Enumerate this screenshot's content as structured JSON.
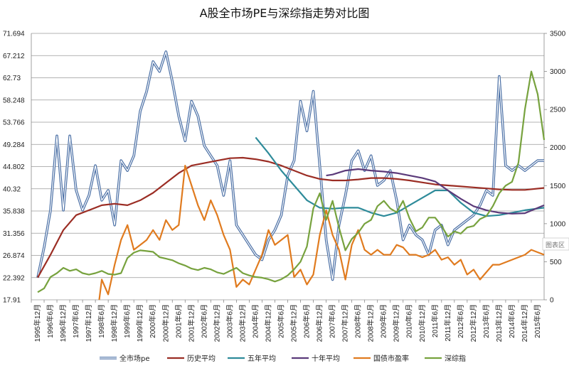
{
  "chart_data": {
    "type": "line",
    "title": "A股全市场PE与深综指走势对比图",
    "grid": "horizontal",
    "legend_position": "bottom",
    "hidden_label": "图表区",
    "y_left": {
      "ticks": [
        "17.91",
        "22.392",
        "26.874",
        "31.356",
        "35.838",
        "40.32",
        "44.802",
        "49.284",
        "53.766",
        "58.248",
        "62.73",
        "67.212",
        "71.694"
      ],
      "range": [
        17.91,
        71.694
      ]
    },
    "y_right": {
      "ticks": [
        "0",
        "500",
        "1000",
        "1500",
        "2000",
        "2500",
        "3000",
        "3500"
      ],
      "range": [
        0,
        3500
      ]
    },
    "x_categories": [
      "1995年12月",
      "1996年6月",
      "1996年12月",
      "1997年6月",
      "1997年12月",
      "1998年6月",
      "1998年12月",
      "1999年6月",
      "1999年12月",
      "2000年6月",
      "2000年12月",
      "2001年6月",
      "2001年12月",
      "2002年6月",
      "2002年12月",
      "2003年6月",
      "2003年12月",
      "2004年6月",
      "2004年12月",
      "2005年6月",
      "2005年12月",
      "2006年6月",
      "2006年12月",
      "2007年6月",
      "2007年12月",
      "2008年6月",
      "2008年12月",
      "2009年6月",
      "2009年12月",
      "2010年6月",
      "2010年12月",
      "2011年6月",
      "2011年12月",
      "2012年6月",
      "2012年12月",
      "2013年6月",
      "2013年12月",
      "2014年6月",
      "2014年12月",
      "2015年6月"
    ],
    "series": [
      {
        "name": "全市场pe",
        "axis": "left",
        "color": "#4a6fa5",
        "double": true,
        "x": [
          0,
          0.5,
          1,
          1.5,
          2,
          2.5,
          3,
          3.5,
          4,
          4.5,
          5,
          5.5,
          6,
          6.5,
          7,
          7.5,
          8,
          8.5,
          9,
          9.5,
          10,
          10.5,
          11,
          11.5,
          12,
          12.5,
          13,
          13.5,
          14,
          14.5,
          15,
          15.5,
          16,
          16.5,
          17,
          17.5,
          18,
          18.5,
          19,
          19.5,
          20,
          20.5,
          21,
          21.5,
          22,
          22.5,
          23,
          23.5,
          24,
          24.5,
          25,
          25.5,
          26,
          26.5,
          27,
          27.5,
          28,
          28.5,
          29,
          29.5,
          30,
          30.5,
          31,
          31.5,
          32,
          32.5,
          33,
          33.5,
          34,
          34.5,
          35,
          35.5,
          36,
          36.5,
          37,
          37.5,
          38,
          38.5,
          39,
          39.5
        ],
        "y": [
          22.4,
          28.5,
          36,
          51,
          36,
          51,
          40,
          36,
          39,
          45,
          38,
          40,
          33,
          46,
          44,
          47,
          56,
          60,
          66,
          64,
          68,
          62,
          55,
          50,
          58,
          55,
          49,
          47,
          45,
          39,
          46,
          33,
          31,
          29,
          27,
          26,
          30,
          32,
          35,
          43,
          46,
          58,
          52,
          60,
          45,
          30,
          22,
          33,
          39,
          46,
          48,
          44,
          47,
          41,
          42,
          44,
          38,
          30,
          33,
          31,
          30,
          27,
          32,
          33,
          29,
          32,
          33,
          34,
          35,
          37,
          40,
          39,
          63,
          45,
          44,
          45,
          44,
          45,
          46,
          46
        ]
      },
      {
        "name": "历史平均",
        "axis": "left",
        "color": "#9b2d24",
        "x": [
          0,
          1,
          2,
          3,
          4,
          5,
          6,
          7,
          8,
          9,
          10,
          11,
          12,
          13,
          14,
          15,
          16,
          17,
          18,
          19,
          20,
          21,
          22,
          23,
          24,
          25,
          26,
          27,
          28,
          29,
          30,
          31,
          32,
          33,
          34,
          35,
          36,
          37,
          38,
          39.5
        ],
        "y": [
          22.4,
          27,
          32,
          35,
          36,
          37,
          37.3,
          37,
          38,
          39.5,
          41.5,
          43.5,
          45,
          45.5,
          46,
          46.5,
          46.6,
          46.3,
          45.8,
          45,
          44,
          43,
          42.3,
          42,
          42,
          42.2,
          42.5,
          42.5,
          42.3,
          42,
          41.6,
          41.2,
          41,
          40.8,
          40.6,
          40.4,
          40.2,
          40.1,
          40.1,
          40.5
        ]
      },
      {
        "name": "五年平均",
        "axis": "left",
        "color": "#2e8b9a",
        "x": [
          17,
          18,
          19,
          20,
          21,
          22,
          23,
          24,
          25,
          26,
          27,
          28,
          29,
          30,
          31,
          32,
          33,
          34,
          35,
          36,
          37,
          38,
          39.5
        ],
        "y": [
          50.7,
          47.5,
          44,
          41,
          38,
          36.5,
          36.3,
          36.5,
          36.5,
          35.5,
          34.8,
          35.5,
          37,
          38.5,
          40,
          40,
          37.5,
          35.5,
          34.8,
          35,
          35.5,
          36,
          36.5
        ]
      },
      {
        "name": "十年平均",
        "axis": "left",
        "color": "#5b3a7a",
        "x": [
          22.5,
          23,
          24,
          25,
          26,
          27,
          28,
          29,
          30,
          31,
          32,
          33,
          34,
          35,
          36,
          37,
          38,
          39.5
        ],
        "y": [
          43,
          43.2,
          44,
          44.3,
          44,
          43.8,
          43.5,
          43,
          42.5,
          41.8,
          40,
          38.3,
          36.8,
          36,
          35.5,
          35.3,
          35.4,
          37
        ]
      },
      {
        "name": "国债市盈率",
        "axis": "left",
        "color": "#e07b1f",
        "x": [
          4.8,
          5,
          5.5,
          6,
          6.5,
          7,
          7.5,
          8,
          8.5,
          9,
          9.5,
          10,
          10.5,
          11,
          11.5,
          12,
          12.5,
          13,
          13.5,
          14,
          14.5,
          15,
          15.5,
          16,
          16.5,
          17,
          17.5,
          18,
          18.5,
          19,
          19.5,
          20,
          20.5,
          21,
          21.5,
          22,
          22.5,
          23,
          23.5,
          24,
          24.5,
          25,
          25.5,
          26,
          26.5,
          27,
          27.5,
          28,
          28.5,
          29,
          29.5,
          30,
          30.5,
          31,
          31.5,
          32,
          32.5,
          33,
          33.5,
          34,
          34.5,
          35,
          35.5,
          36,
          36.5,
          37,
          37.5,
          38,
          38.5,
          39,
          39.5
        ],
        "y": [
          17.9,
          22,
          19,
          25,
          30,
          33,
          28,
          29,
          30,
          32,
          30,
          34,
          32,
          33,
          45,
          41,
          37,
          34,
          38,
          35,
          31,
          28,
          20.5,
          22,
          21,
          24,
          27,
          32,
          29,
          30,
          31,
          22.5,
          24,
          21,
          23,
          31,
          36,
          31,
          28,
          22,
          29,
          32,
          28,
          27,
          28,
          27,
          27,
          29,
          28.5,
          27,
          27,
          26.5,
          27,
          28,
          26,
          26.5,
          25,
          26,
          23,
          24,
          22,
          23.5,
          25,
          25,
          25.5,
          26,
          26.5,
          27,
          28,
          27.5,
          27
        ]
      },
      {
        "name": "深综指",
        "axis": "right",
        "color": "#77a23e",
        "x": [
          0,
          0.5,
          1,
          1.5,
          2,
          2.5,
          3,
          3.5,
          4,
          4.5,
          5,
          5.5,
          6,
          6.5,
          7,
          7.5,
          8,
          8.5,
          9,
          9.5,
          10,
          10.5,
          11,
          11.5,
          12,
          12.5,
          13,
          13.5,
          14,
          14.5,
          15,
          15.5,
          16,
          16.5,
          17,
          17.5,
          18,
          18.5,
          19,
          19.5,
          20,
          20.5,
          21,
          21.5,
          22,
          22.5,
          23,
          23.5,
          24,
          24.5,
          25,
          25.5,
          26,
          26.5,
          27,
          27.5,
          28,
          28.5,
          29,
          29.5,
          30,
          30.5,
          31,
          31.5,
          32,
          32.5,
          33,
          33.5,
          34,
          34.5,
          35,
          35.5,
          36,
          36.5,
          37,
          37.5,
          38,
          38.5,
          39,
          39.5
        ],
        "y": [
          100,
          150,
          300,
          350,
          420,
          380,
          400,
          350,
          330,
          350,
          380,
          340,
          330,
          350,
          550,
          620,
          650,
          640,
          630,
          560,
          540,
          520,
          480,
          450,
          410,
          390,
          420,
          400,
          360,
          340,
          380,
          420,
          350,
          320,
          300,
          290,
          270,
          240,
          270,
          320,
          400,
          500,
          700,
          1200,
          1400,
          1050,
          1300,
          950,
          650,
          800,
          880,
          1000,
          1050,
          1230,
          1300,
          1200,
          1150,
          1300,
          1070,
          900,
          950,
          1080,
          1080,
          970,
          830,
          900,
          870,
          950,
          970,
          1060,
          1100,
          1230,
          1400,
          1500,
          1550,
          1800,
          2500,
          3000,
          2700,
          2100
        ]
      }
    ]
  }
}
